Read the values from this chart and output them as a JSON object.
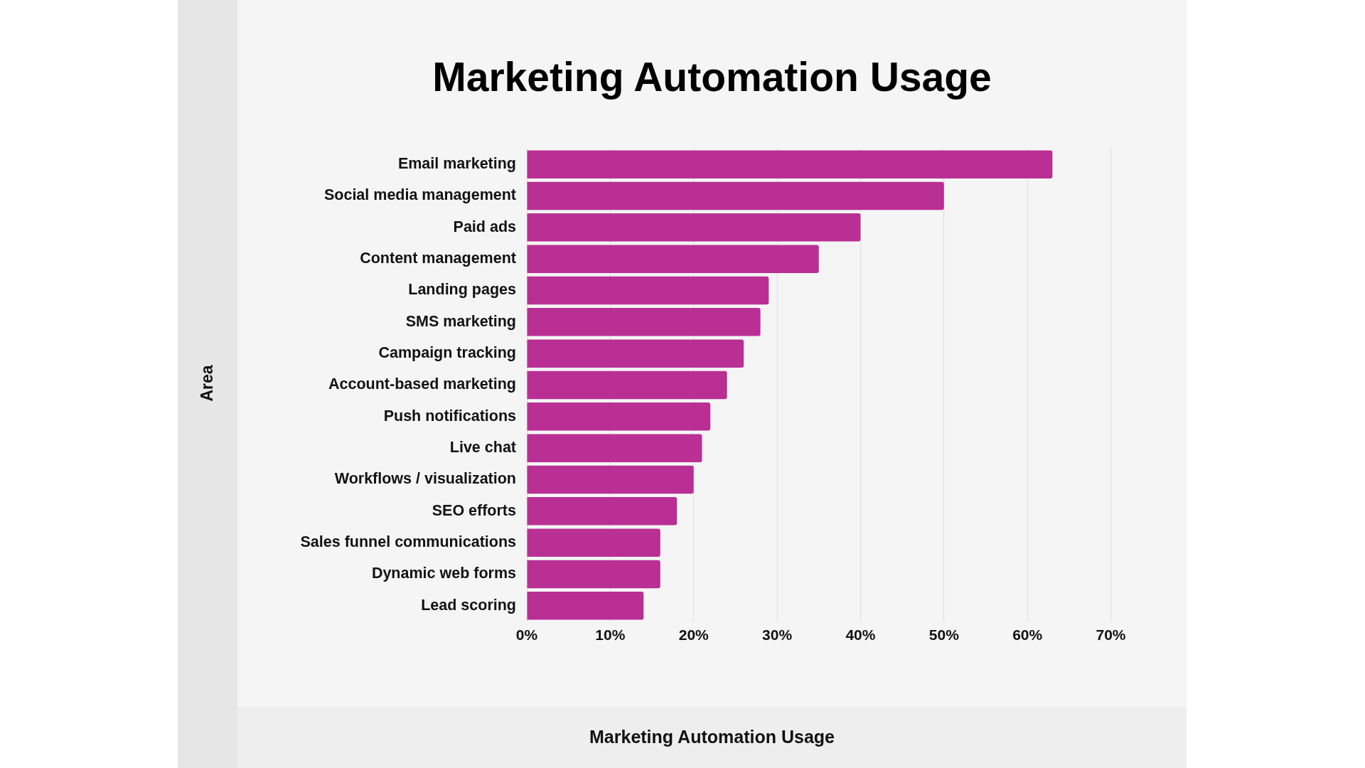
{
  "chart_data": {
    "type": "bar",
    "orientation": "horizontal",
    "title": "Marketing Automation Usage",
    "annotations": [
      "Area",
      "Marketing Automation Usage"
    ],
    "categories": [
      "Email marketing",
      "Social media management",
      "Paid ads",
      "Content management",
      "Landing pages",
      "SMS marketing",
      "Campaign tracking",
      "Account-based marketing",
      "Push notifications",
      "Live chat",
      "Workflows / visualization",
      "SEO efforts",
      "Sales funnel communications",
      "Dynamic web forms",
      "Lead scoring"
    ],
    "values": [
      63,
      50,
      40,
      35,
      29,
      28,
      26,
      24,
      22,
      21,
      20,
      18,
      16,
      16,
      14
    ],
    "color": "#b92f94",
    "xlim": [
      0,
      70
    ],
    "xticks": [
      {
        "value": 0,
        "label": "0%"
      },
      {
        "value": 10,
        "label": "10%"
      },
      {
        "value": 20,
        "label": "20%"
      },
      {
        "value": 30,
        "label": "30%"
      },
      {
        "value": 40,
        "label": "40%"
      },
      {
        "value": 50,
        "label": "50%"
      },
      {
        "value": 60,
        "label": "60%"
      },
      {
        "value": 70,
        "label": "70%"
      }
    ],
    "grid": "x",
    "legend": false
  }
}
